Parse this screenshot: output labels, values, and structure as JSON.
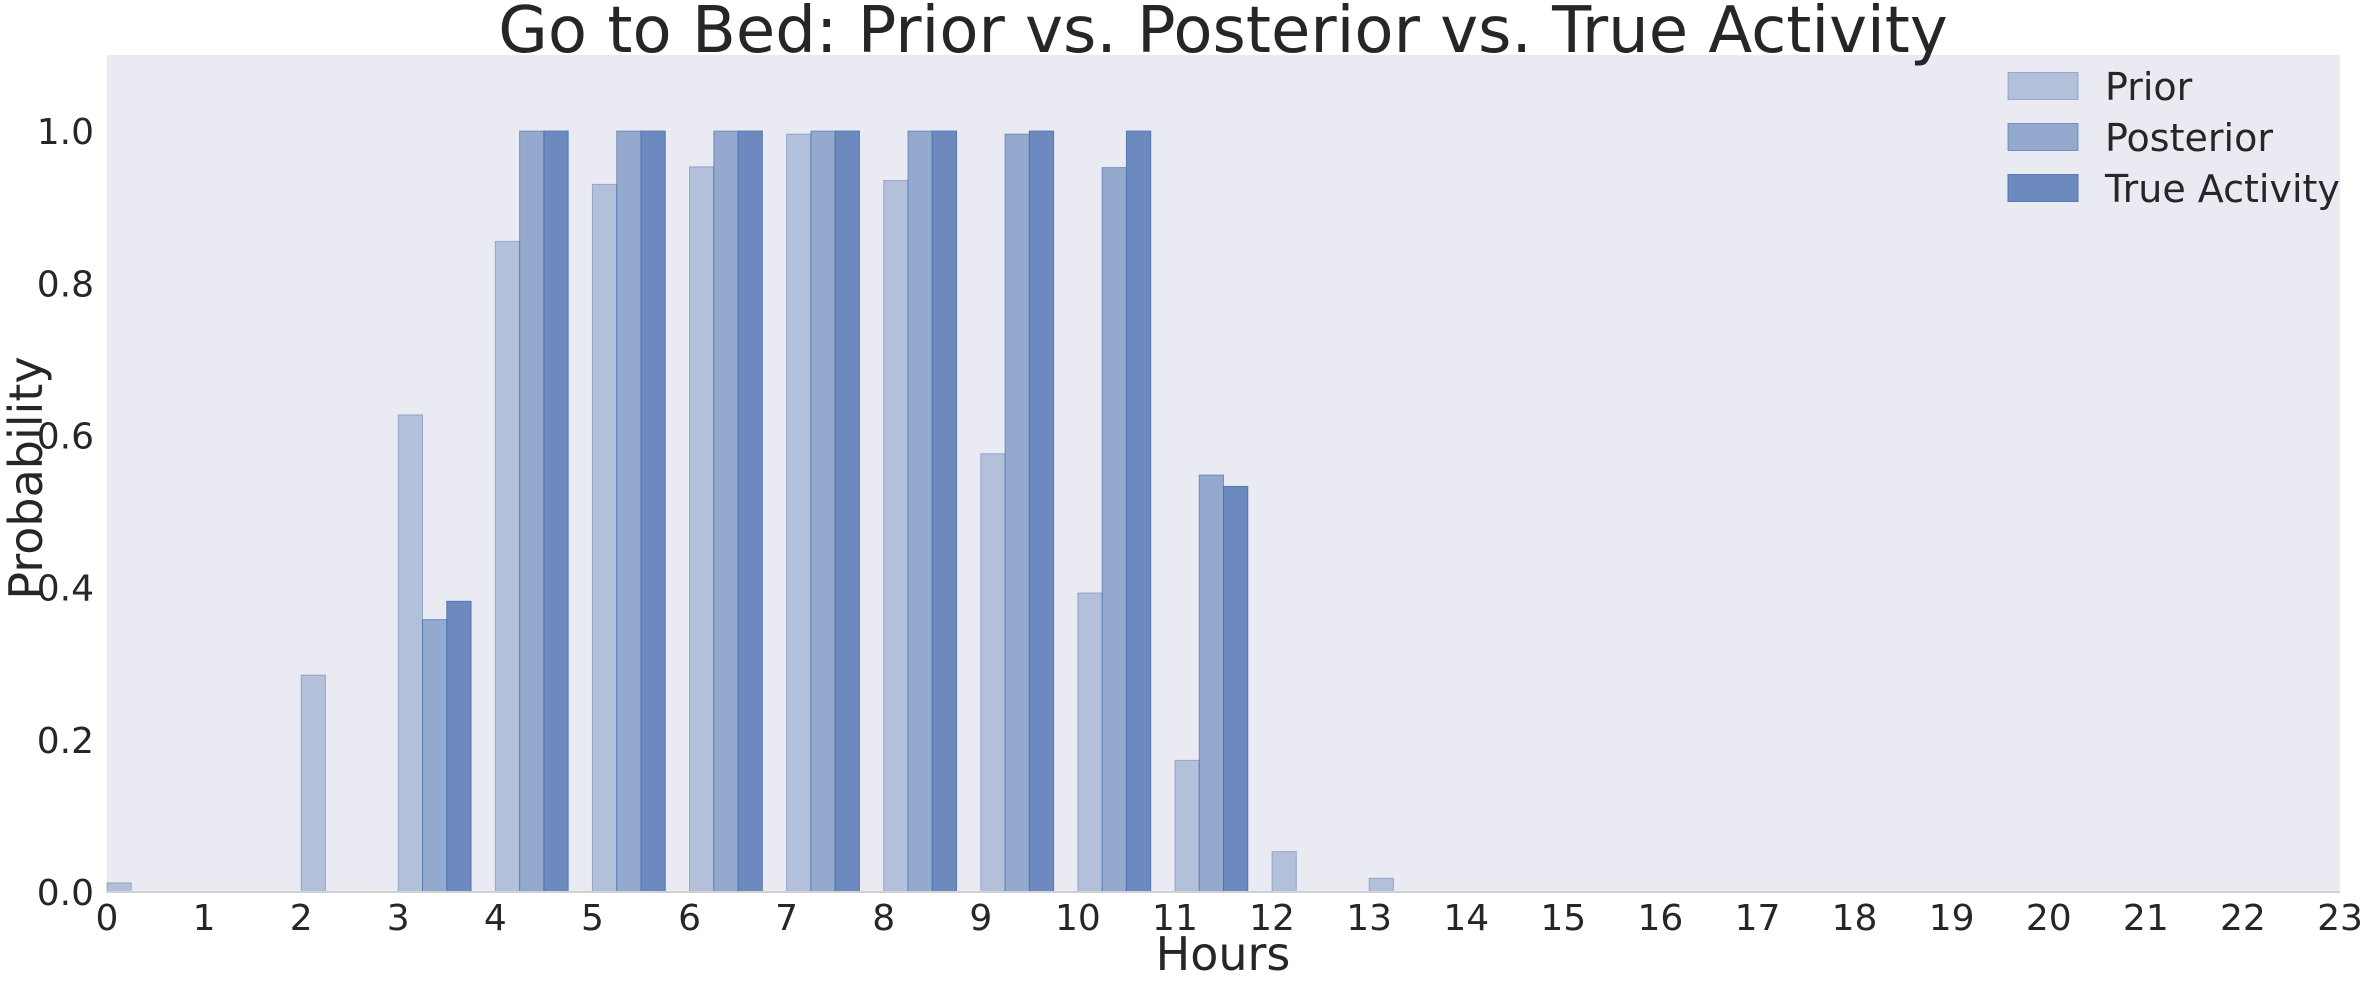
{
  "chart_data": {
    "type": "bar",
    "title": "Go to Bed: Prior vs. Posterior vs. True Activity",
    "xlabel": "Hours",
    "ylabel": "Probability",
    "xlim": [
      0,
      23
    ],
    "ylim": [
      0,
      1.1
    ],
    "x": [
      0,
      1,
      2,
      3,
      4,
      5,
      6,
      7,
      8,
      9,
      10,
      11,
      12,
      13,
      14,
      15,
      16,
      17,
      18,
      19,
      20,
      21,
      22,
      23
    ],
    "xticks": [
      "0",
      "1",
      "2",
      "3",
      "4",
      "5",
      "6",
      "7",
      "8",
      "9",
      "10",
      "11",
      "12",
      "13",
      "14",
      "15",
      "16",
      "17",
      "18",
      "19",
      "20",
      "21",
      "22",
      "23"
    ],
    "yticks": [
      "0.0",
      "0.2",
      "0.4",
      "0.6",
      "0.8",
      "1.0"
    ],
    "ytick_values": [
      0,
      0.2,
      0.4,
      0.6,
      0.8,
      1.0
    ],
    "grid": false,
    "legend_position": "top-right",
    "series": [
      {
        "name": "Prior",
        "color": "#4c72b0",
        "opacity": 0.35,
        "values": [
          0.012,
          0,
          0.285,
          0.627,
          0.855,
          0.93,
          0.953,
          0.996,
          0.935,
          0.576,
          0.393,
          0.173,
          0.053,
          0.018,
          0,
          0,
          0,
          0,
          0,
          0,
          0,
          0,
          0,
          0
        ]
      },
      {
        "name": "Posterior",
        "color": "#4c72b0",
        "opacity": 0.55,
        "values": [
          0,
          0,
          0,
          0.358,
          1.0,
          1.0,
          1.0,
          1.0,
          1.0,
          0.996,
          0.952,
          0.548,
          0,
          0,
          0,
          0,
          0,
          0,
          0,
          0,
          0,
          0,
          0,
          0
        ]
      },
      {
        "name": "True Activity",
        "color": "#4c72b0",
        "opacity": 0.8,
        "values": [
          0,
          0,
          0,
          0.382,
          1.0,
          1.0,
          1.0,
          1.0,
          1.0,
          1.0,
          1.0,
          0.533,
          0,
          0,
          0,
          0,
          0,
          0,
          0,
          0,
          0,
          0,
          0,
          0
        ]
      }
    ]
  }
}
